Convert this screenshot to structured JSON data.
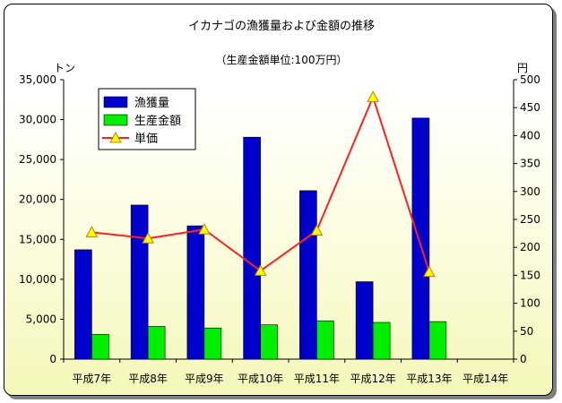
{
  "chart_data": {
    "type": "bar",
    "title": "イカナゴの漁獲量および金額の推移",
    "subtitle": "（生産金額単位:100万円）",
    "ylabel_left": "トン",
    "ylabel_right": "円",
    "categories": [
      "平成7年",
      "平成8年",
      "平成9年",
      "平成10年",
      "平成11年",
      "平成12年",
      "平成13年",
      "平成14年"
    ],
    "yticks_left": [
      "0",
      "5,000",
      "10,000",
      "15,000",
      "20,000",
      "25,000",
      "30,000",
      "35,000"
    ],
    "yticks_right": [
      "0",
      "50",
      "100",
      "150",
      "200",
      "250",
      "300",
      "350",
      "400",
      "450",
      "500"
    ],
    "ylim_left": [
      0,
      35000
    ],
    "ylim_right": [
      0,
      500
    ],
    "legend_position": "top-left",
    "series": [
      {
        "name": "漁獲量",
        "type": "bar",
        "axis": "left",
        "color": "#0000cc",
        "values": [
          13700,
          19300,
          16700,
          27800,
          21100,
          9700,
          30200,
          null
        ]
      },
      {
        "name": "生産金額",
        "type": "bar",
        "axis": "left",
        "color": "#00ee00",
        "values": [
          3100,
          4100,
          3900,
          4300,
          4800,
          4600,
          4700,
          null
        ]
      },
      {
        "name": "単価",
        "type": "line",
        "axis": "right",
        "color": "#ff2020",
        "marker": "triangle",
        "marker_color": "#ffff00",
        "values": [
          227,
          216,
          232,
          158,
          230,
          469,
          156,
          null
        ]
      }
    ]
  }
}
